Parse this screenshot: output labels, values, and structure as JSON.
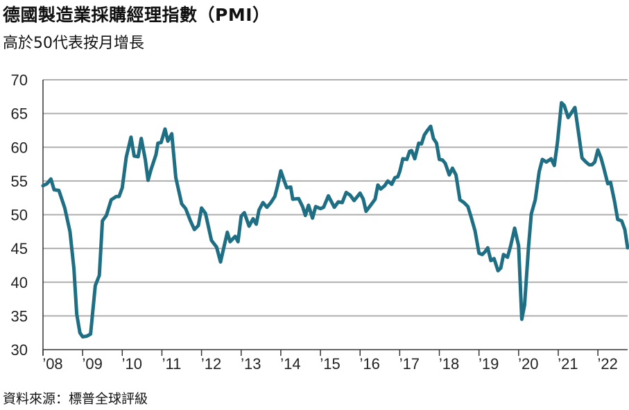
{
  "title": "德國製造業採購經理指數（PMI）",
  "subtitle": "高於50代表按月增長",
  "source": "資料來源：標普全球評級",
  "chart_data": {
    "type": "line",
    "ylim": [
      30,
      70
    ],
    "yticks": [
      30,
      35,
      40,
      45,
      50,
      55,
      60,
      65,
      70
    ],
    "xlim": [
      2008.0,
      2022.75
    ],
    "xticks": [
      {
        "year": 2008,
        "label": "’08"
      },
      {
        "year": 2009,
        "label": "’09"
      },
      {
        "year": 2010,
        "label": "’10"
      },
      {
        "year": 2011,
        "label": "’11"
      },
      {
        "year": 2012,
        "label": "’12"
      },
      {
        "year": 2013,
        "label": "’13"
      },
      {
        "year": 2014,
        "label": "’14"
      },
      {
        "year": 2015,
        "label": "’15"
      },
      {
        "year": 2016,
        "label": "’16"
      },
      {
        "year": 2017,
        "label": "’17"
      },
      {
        "year": 2018,
        "label": "’18"
      },
      {
        "year": 2019,
        "label": "’19"
      },
      {
        "year": 2020,
        "label": "’20"
      },
      {
        "year": 2021,
        "label": "’21"
      },
      {
        "year": 2022,
        "label": "’22"
      }
    ],
    "grid": true,
    "line_color": "#1e6e84",
    "series": [
      {
        "values": [
          [
            2008.0,
            54.3
          ],
          [
            2008.1,
            54.6
          ],
          [
            2008.2,
            55.3
          ],
          [
            2008.28,
            53.7
          ],
          [
            2008.4,
            53.6
          ],
          [
            2008.55,
            51.0
          ],
          [
            2008.68,
            47.5
          ],
          [
            2008.78,
            42.0
          ],
          [
            2008.85,
            35.3
          ],
          [
            2008.93,
            32.5
          ],
          [
            2009.0,
            31.9
          ],
          [
            2009.1,
            32.0
          ],
          [
            2009.2,
            32.3
          ],
          [
            2009.32,
            39.5
          ],
          [
            2009.42,
            41.0
          ],
          [
            2009.5,
            49.1
          ],
          [
            2009.6,
            49.9
          ],
          [
            2009.72,
            52.2
          ],
          [
            2009.85,
            52.7
          ],
          [
            2009.92,
            52.7
          ],
          [
            2010.0,
            54.0
          ],
          [
            2010.1,
            58.5
          ],
          [
            2010.22,
            61.5
          ],
          [
            2010.3,
            58.7
          ],
          [
            2010.4,
            58.6
          ],
          [
            2010.48,
            61.3
          ],
          [
            2010.58,
            58.2
          ],
          [
            2010.65,
            55.1
          ],
          [
            2010.72,
            56.6
          ],
          [
            2010.85,
            58.9
          ],
          [
            2010.9,
            60.6
          ],
          [
            2010.98,
            60.7
          ],
          [
            2011.08,
            62.7
          ],
          [
            2011.15,
            60.9
          ],
          [
            2011.25,
            62.0
          ],
          [
            2011.35,
            55.5
          ],
          [
            2011.5,
            51.6
          ],
          [
            2011.6,
            50.9
          ],
          [
            2011.72,
            49.1
          ],
          [
            2011.82,
            47.8
          ],
          [
            2011.92,
            48.4
          ],
          [
            2012.0,
            51.0
          ],
          [
            2012.1,
            50.2
          ],
          [
            2012.25,
            46.2
          ],
          [
            2012.38,
            45.2
          ],
          [
            2012.48,
            43.0
          ],
          [
            2012.55,
            44.8
          ],
          [
            2012.65,
            47.4
          ],
          [
            2012.72,
            46.0
          ],
          [
            2012.85,
            46.8
          ],
          [
            2012.92,
            46.0
          ],
          [
            2013.0,
            49.8
          ],
          [
            2013.08,
            50.3
          ],
          [
            2013.2,
            48.3
          ],
          [
            2013.3,
            49.4
          ],
          [
            2013.38,
            48.6
          ],
          [
            2013.45,
            50.7
          ],
          [
            2013.55,
            51.8
          ],
          [
            2013.65,
            51.1
          ],
          [
            2013.75,
            51.8
          ],
          [
            2013.85,
            52.7
          ],
          [
            2013.92,
            54.3
          ],
          [
            2014.0,
            56.5
          ],
          [
            2014.1,
            54.8
          ],
          [
            2014.15,
            54.0
          ],
          [
            2014.25,
            54.1
          ],
          [
            2014.3,
            52.3
          ],
          [
            2014.45,
            52.4
          ],
          [
            2014.55,
            51.2
          ],
          [
            2014.62,
            49.9
          ],
          [
            2014.7,
            51.4
          ],
          [
            2014.8,
            49.5
          ],
          [
            2014.88,
            51.2
          ],
          [
            2015.0,
            50.9
          ],
          [
            2015.08,
            51.1
          ],
          [
            2015.2,
            52.8
          ],
          [
            2015.35,
            51.1
          ],
          [
            2015.45,
            51.9
          ],
          [
            2015.55,
            51.8
          ],
          [
            2015.65,
            53.3
          ],
          [
            2015.75,
            52.9
          ],
          [
            2015.85,
            52.1
          ],
          [
            2015.92,
            52.6
          ],
          [
            2016.0,
            53.2
          ],
          [
            2016.08,
            52.3
          ],
          [
            2016.15,
            50.5
          ],
          [
            2016.28,
            51.5
          ],
          [
            2016.38,
            52.3
          ],
          [
            2016.45,
            54.4
          ],
          [
            2016.52,
            53.8
          ],
          [
            2016.62,
            54.3
          ],
          [
            2016.7,
            55.0
          ],
          [
            2016.8,
            54.5
          ],
          [
            2016.88,
            55.5
          ],
          [
            2016.95,
            55.6
          ],
          [
            2017.0,
            56.4
          ],
          [
            2017.08,
            58.3
          ],
          [
            2017.18,
            58.2
          ],
          [
            2017.25,
            59.4
          ],
          [
            2017.3,
            59.5
          ],
          [
            2017.38,
            58.3
          ],
          [
            2017.48,
            60.6
          ],
          [
            2017.55,
            60.5
          ],
          [
            2017.62,
            61.8
          ],
          [
            2017.7,
            62.5
          ],
          [
            2017.78,
            63.1
          ],
          [
            2017.85,
            61.3
          ],
          [
            2017.93,
            60.6
          ],
          [
            2018.0,
            58.2
          ],
          [
            2018.08,
            58.1
          ],
          [
            2018.15,
            57.6
          ],
          [
            2018.25,
            55.9
          ],
          [
            2018.33,
            56.9
          ],
          [
            2018.42,
            55.9
          ],
          [
            2018.52,
            52.2
          ],
          [
            2018.62,
            51.8
          ],
          [
            2018.72,
            51.2
          ],
          [
            2018.8,
            49.7
          ],
          [
            2018.9,
            47.6
          ],
          [
            2019.0,
            44.3
          ],
          [
            2019.08,
            44.1
          ],
          [
            2019.15,
            44.5
          ],
          [
            2019.22,
            45.1
          ],
          [
            2019.3,
            43.2
          ],
          [
            2019.38,
            43.5
          ],
          [
            2019.48,
            41.7
          ],
          [
            2019.55,
            42.1
          ],
          [
            2019.62,
            44.1
          ],
          [
            2019.72,
            43.7
          ],
          [
            2019.8,
            45.4
          ],
          [
            2019.9,
            48.0
          ],
          [
            2020.0,
            45.4
          ],
          [
            2020.08,
            34.5
          ],
          [
            2020.15,
            36.6
          ],
          [
            2020.25,
            45.2
          ],
          [
            2020.32,
            50.1
          ],
          [
            2020.42,
            52.2
          ],
          [
            2020.52,
            56.4
          ],
          [
            2020.6,
            58.2
          ],
          [
            2020.7,
            57.8
          ],
          [
            2020.82,
            58.3
          ],
          [
            2020.9,
            57.3
          ],
          [
            2020.98,
            60.7
          ],
          [
            2021.08,
            66.6
          ],
          [
            2021.15,
            66.2
          ],
          [
            2021.25,
            64.4
          ],
          [
            2021.33,
            65.1
          ],
          [
            2021.42,
            65.9
          ],
          [
            2021.5,
            62.6
          ],
          [
            2021.6,
            58.4
          ],
          [
            2021.7,
            57.8
          ],
          [
            2021.78,
            57.4
          ],
          [
            2021.85,
            57.4
          ],
          [
            2021.92,
            57.8
          ],
          [
            2022.0,
            59.6
          ],
          [
            2022.08,
            58.4
          ],
          [
            2022.15,
            56.9
          ],
          [
            2022.25,
            54.6
          ],
          [
            2022.32,
            54.8
          ],
          [
            2022.42,
            52.0
          ],
          [
            2022.5,
            49.3
          ],
          [
            2022.6,
            49.1
          ],
          [
            2022.68,
            47.8
          ],
          [
            2022.75,
            45.1
          ]
        ]
      }
    ]
  }
}
